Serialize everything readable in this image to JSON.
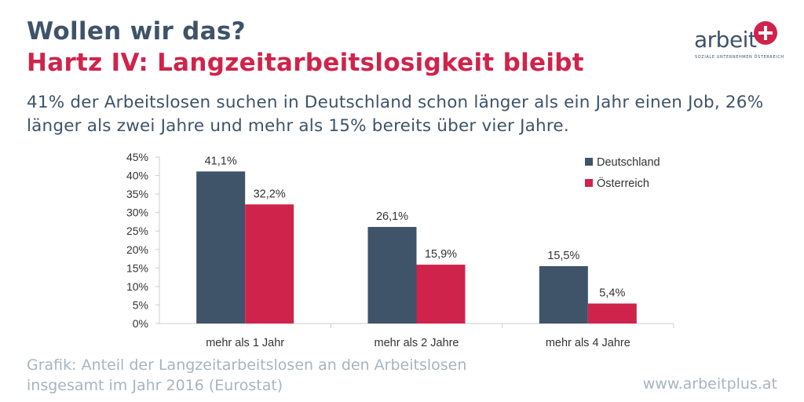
{
  "header": {
    "title": "Wollen wir das?",
    "headline": "Hartz IV: Langzeitarbeitslosigkeit bleibt",
    "intro": "41% der Arbeitslosen suchen in Deutschland schon länger als ein Jahr einen Job, 26% länger als zwei Jahre und mehr als 15% bereits über vier Jahre."
  },
  "logo": {
    "word": "arbeit",
    "tagline": "SOZIALE UNTERNEHMEN ÖSTERREICH"
  },
  "footer": {
    "note_line1": "Grafik: Anteil der Langzeitarbeitslosen an den Arbeitslosen",
    "note_line2": "insgesamt im Jahr 2016 (Eurostat)",
    "url": "www.arbeitplus.at"
  },
  "colors": {
    "deutschland": "#3f5369",
    "oesterreich": "#d0234b",
    "title": "#3e5369",
    "accent": "#d0234b",
    "muted": "#a7b4c0"
  },
  "chart_data": {
    "type": "bar",
    "categories": [
      "mehr als 1 Jahr",
      "mehr als 2 Jahre",
      "mehr als 4 Jahre"
    ],
    "series": [
      {
        "name": "Deutschland",
        "values": [
          41.1,
          26.1,
          15.5
        ],
        "labels": [
          "41,1%",
          "26,1%",
          "15,5%"
        ],
        "color": "#3f5369"
      },
      {
        "name": "Österreich",
        "values": [
          32.2,
          15.9,
          5.4
        ],
        "labels": [
          "32,2%",
          "15,9%",
          "5,4%"
        ],
        "color": "#d0234b"
      }
    ],
    "yticks": [
      "0%",
      "5%",
      "10%",
      "15%",
      "20%",
      "25%",
      "30%",
      "35%",
      "40%",
      "45%"
    ],
    "ylim": [
      0,
      45
    ],
    "grid": false,
    "legend": "top-right"
  }
}
